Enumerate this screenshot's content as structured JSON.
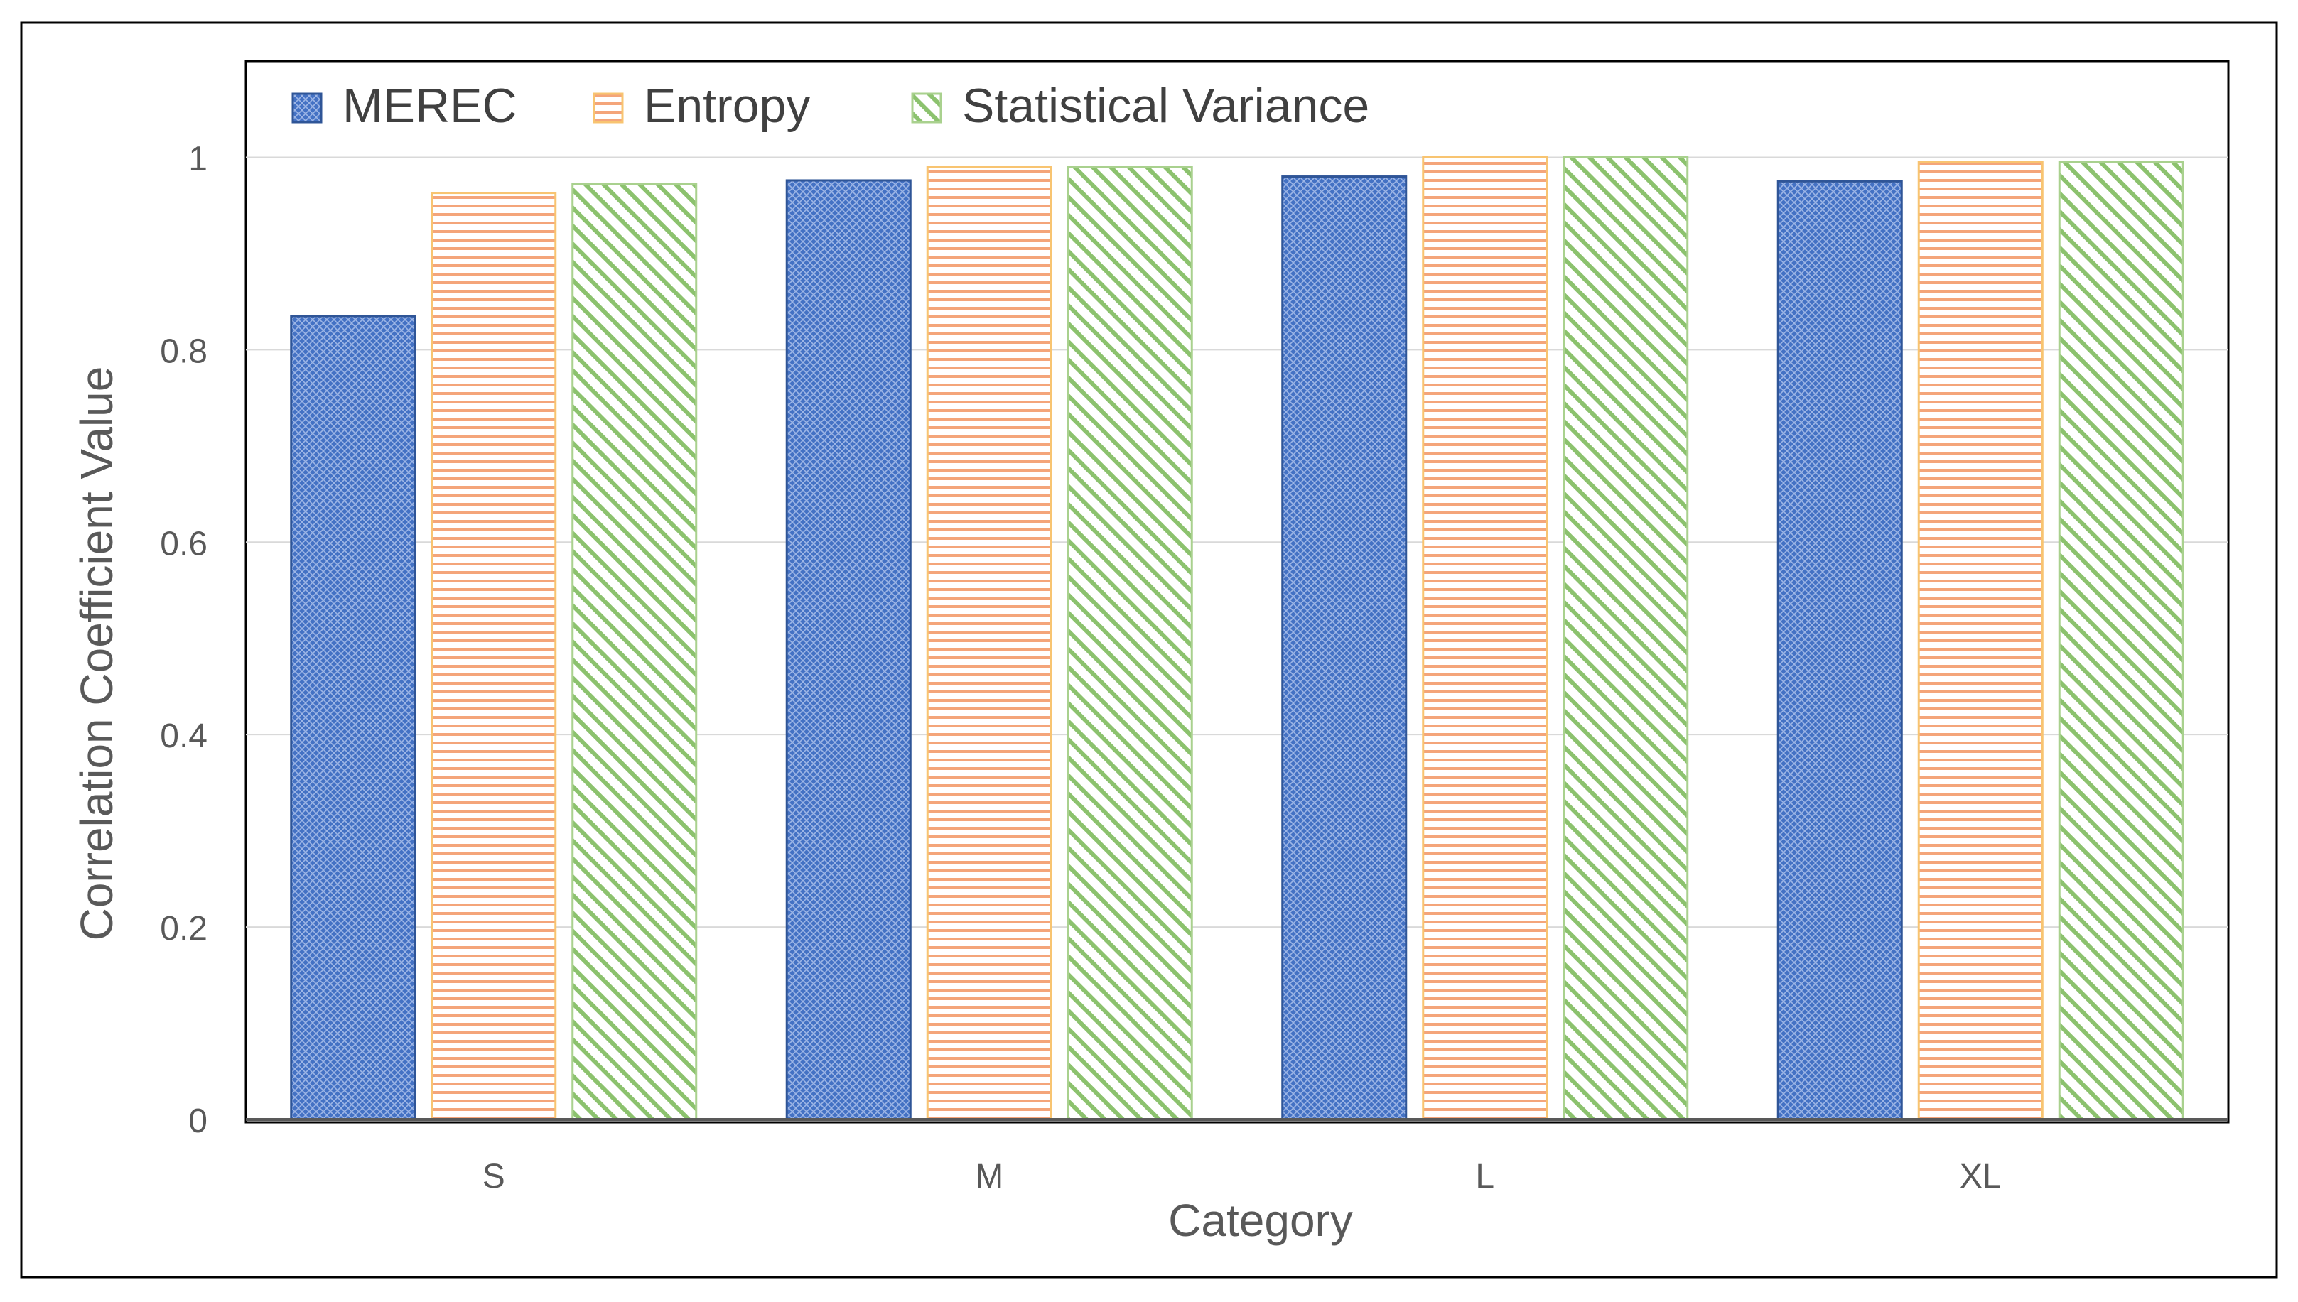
{
  "chart_data": {
    "type": "bar",
    "categories": [
      "S",
      "M",
      "L",
      "XL"
    ],
    "series": [
      {
        "name": "MEREC",
        "values": [
          0.835,
          0.976,
          0.98,
          0.975
        ],
        "color": "#4472C4",
        "pattern": "crosshatch"
      },
      {
        "name": "Entropy",
        "values": [
          0.963,
          0.99,
          1.0,
          0.995
        ],
        "color": "#ED7D31",
        "pattern": "horizontal"
      },
      {
        "name": "Statistical Variance",
        "values": [
          0.972,
          0.99,
          1.0,
          0.995
        ],
        "color": "#70AD47",
        "pattern": "diagonal"
      }
    ],
    "xlabel": "Category",
    "ylabel": "Correlation Coefficient Value",
    "ylim": [
      0,
      1.1
    ],
    "yticks": [
      0,
      0.2,
      0.4,
      0.6,
      0.8,
      1
    ],
    "ytick_labels": [
      "0",
      "0.2",
      "0.4",
      "0.6",
      "0.8",
      "1"
    ],
    "grid": true,
    "legend_position": "top-left"
  }
}
